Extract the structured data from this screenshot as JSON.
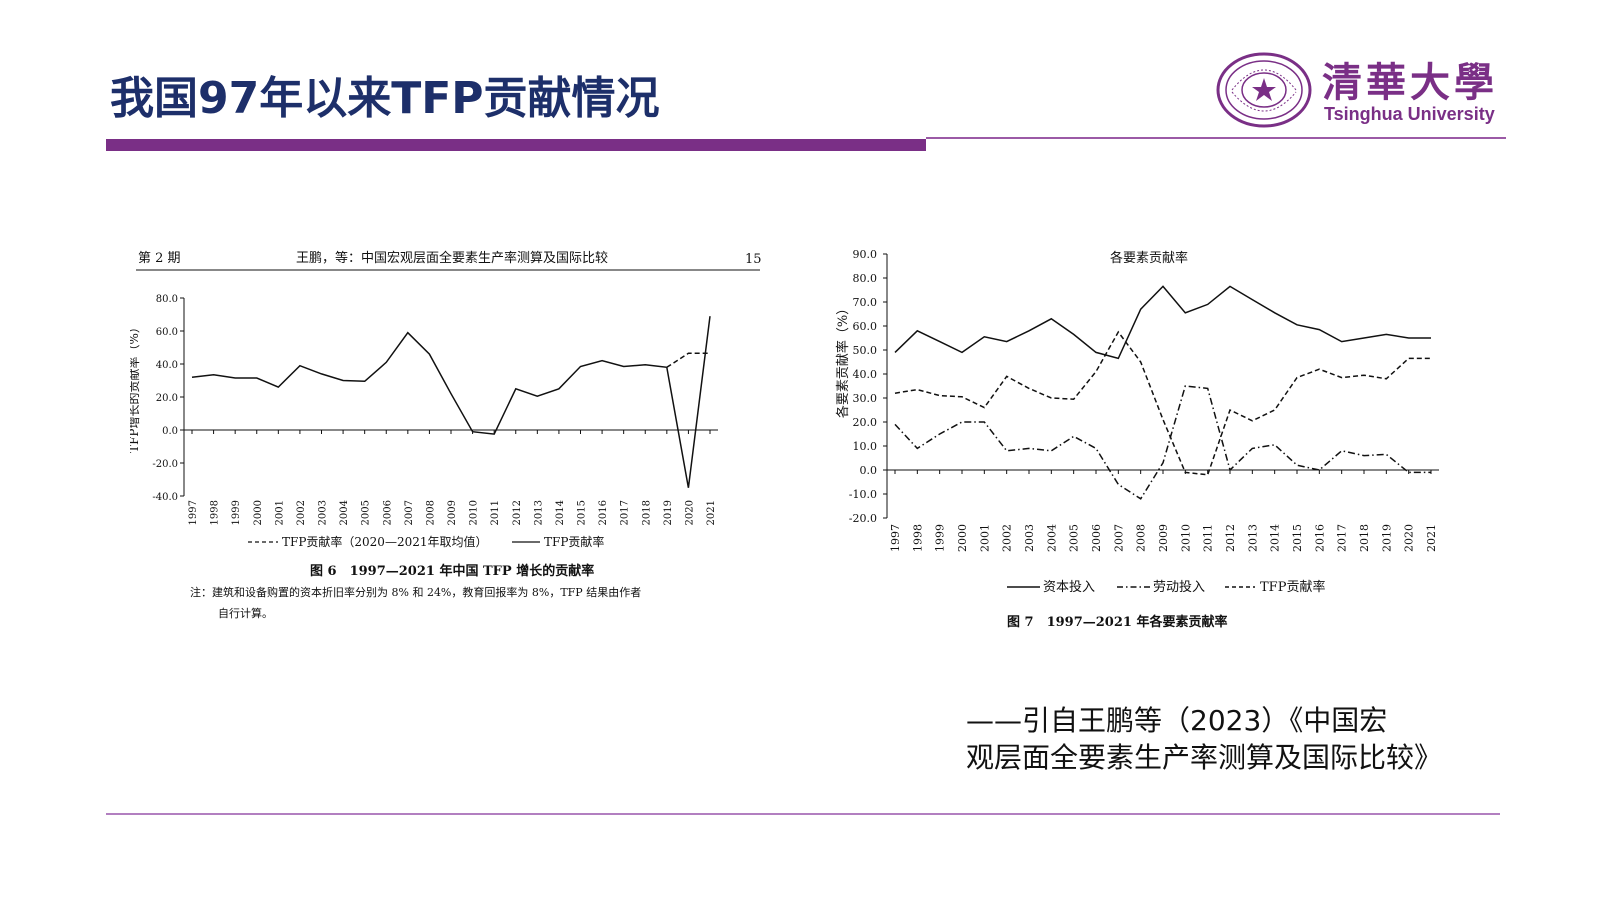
{
  "slide": {
    "title": "我国97年以来TFP贡献情况",
    "citation_line1": "——引自王鹏等（2023）《中国宏",
    "citation_line2": "观层面全要素生产率测算及国际比较》"
  },
  "logo": {
    "cn": "清華大學",
    "en": "Tsinghua University",
    "seal_text": "清华大学 1911"
  },
  "colors": {
    "title": "#1d2f6a",
    "accent": "#7a2f86",
    "rule_thin": "#9b5aa6"
  },
  "left_page": {
    "header_issue": "第 2 期",
    "header_title": "王鹏，等：中国宏观层面全要素生产率测算及国际比较",
    "header_page": "15",
    "caption": "图 6　1997—2021 年中国 TFP 增长的贡献率",
    "note_line1": "注：建筑和设备购置的资本折旧率分别为 8% 和 24%，教育回报率为 8%，TFP 结果由作者",
    "note_line2": "自行计算。"
  },
  "right_page": {
    "caption": "图 7　1997—2021 年各要素贡献率"
  },
  "chart_data": [
    {
      "type": "line",
      "title": "",
      "xlabel": "",
      "ylabel": "TFP增长的贡献率（%）",
      "ylim": [
        -40,
        80
      ],
      "yticks": [
        "80.0",
        "60.0",
        "40.0",
        "20.0",
        "0.0",
        "-20.0",
        "-40.0"
      ],
      "x": [
        "1997",
        "1998",
        "1999",
        "2000",
        "2001",
        "2002",
        "2003",
        "2004",
        "2005",
        "2006",
        "2007",
        "2008",
        "2009",
        "2010",
        "2011",
        "2012",
        "2013",
        "2014",
        "2015",
        "2016",
        "2017",
        "2018",
        "2019",
        "2020",
        "2021"
      ],
      "series": [
        {
          "name": "TFP贡献率",
          "style": "solid",
          "values": [
            32,
            33.5,
            31.5,
            31.5,
            26,
            39,
            34,
            30,
            29.5,
            41,
            59,
            46,
            22,
            -1,
            -2.5,
            25,
            20.5,
            25,
            38.5,
            42,
            38.5,
            39.5,
            38,
            -35,
            69
          ]
        },
        {
          "name": "TFP贡献率（2020—2021年取均值）",
          "style": "dashed",
          "x": [
            "2019",
            "2020",
            "2021"
          ],
          "values": [
            38,
            46.5,
            46.5
          ]
        }
      ],
      "legend": [
        "TFP贡献率（2020—2021年取均值）",
        "TFP贡献率"
      ],
      "legend_position": "bottom"
    },
    {
      "type": "line",
      "title": "各要素贡献率",
      "xlabel": "",
      "ylabel": "各要素贡献率（%）",
      "ylim": [
        -20,
        90
      ],
      "yticks": [
        "90.0",
        "80.0",
        "70.0",
        "60.0",
        "50.0",
        "40.0",
        "30.0",
        "20.0",
        "10.0",
        "0.0",
        "-10.0",
        "-20.0"
      ],
      "x": [
        "1997",
        "1998",
        "1999",
        "2000",
        "2001",
        "2002",
        "2003",
        "2004",
        "2005",
        "2006",
        "2007",
        "2008",
        "2009",
        "2010",
        "2011",
        "2012",
        "2013",
        "2014",
        "2015",
        "2016",
        "2017",
        "2018",
        "2019",
        "2020",
        "2021"
      ],
      "series": [
        {
          "name": "资本投入",
          "style": "solid",
          "values": [
            49,
            58,
            53.5,
            49,
            55.5,
            53.5,
            58,
            63,
            56.5,
            49,
            46.5,
            67,
            76.5,
            65.5,
            69,
            76.5,
            71,
            65.5,
            60.5,
            58.5,
            53.5,
            55,
            56.5,
            55,
            55
          ]
        },
        {
          "name": "劳动投入",
          "style": "dashdot",
          "values": [
            19,
            9,
            15,
            20,
            20,
            8,
            9,
            8,
            14,
            9,
            -6,
            -12,
            3,
            35,
            34,
            0,
            9,
            10.5,
            2,
            0,
            8,
            6,
            6.5,
            -1,
            -1
          ]
        },
        {
          "name": "TFP贡献率",
          "style": "dashed",
          "values": [
            32,
            33.5,
            31,
            30.5,
            26,
            39,
            34,
            30,
            29.5,
            41,
            57.5,
            45,
            21,
            -1,
            -2,
            25,
            20.5,
            25,
            38.5,
            42,
            38.5,
            39.5,
            38,
            46.5,
            46.5
          ]
        }
      ],
      "legend": [
        "资本投入",
        "劳动投入",
        "TFP贡献率"
      ],
      "legend_position": "bottom"
    }
  ]
}
